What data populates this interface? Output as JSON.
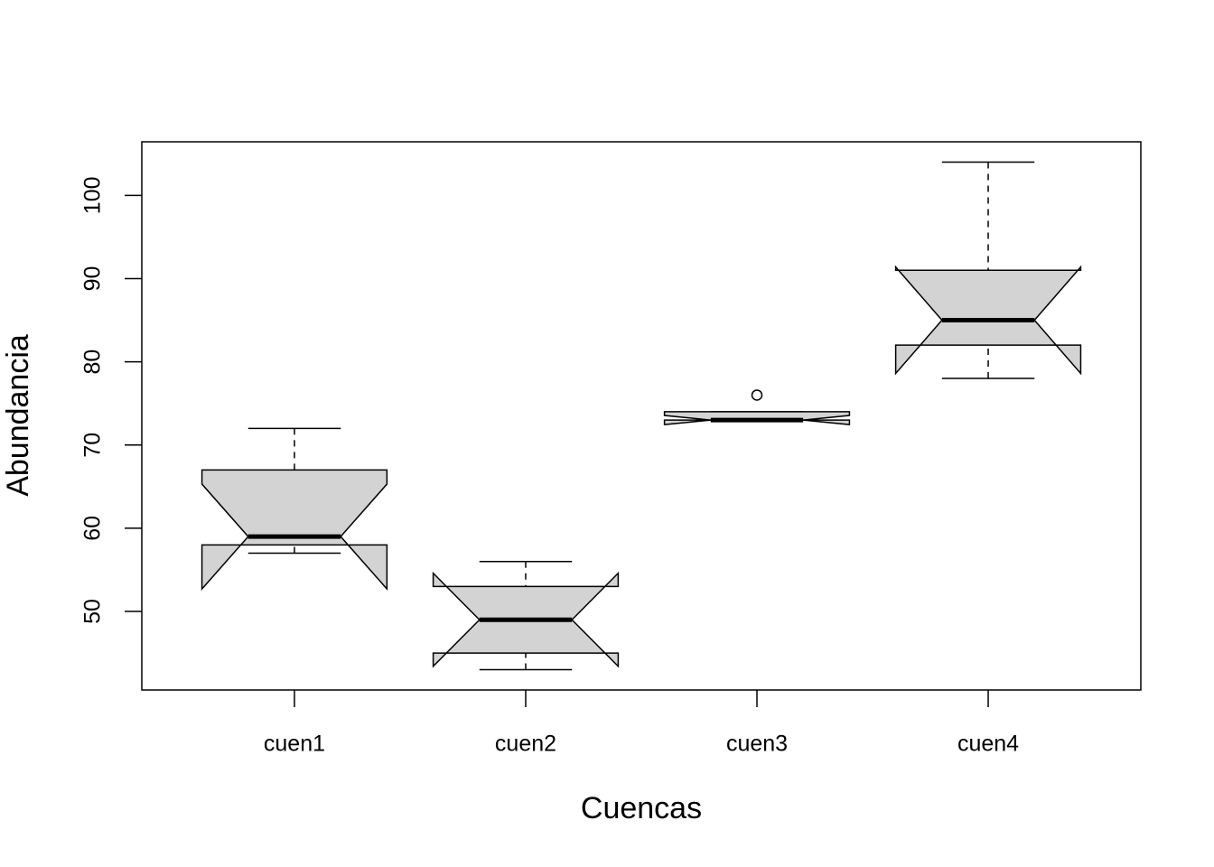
{
  "chart_data": {
    "type": "box",
    "x_label": "Cuencas",
    "y_label": "Abundancia",
    "categories": [
      "cuen1",
      "cuen2",
      "cuen3",
      "cuen4"
    ],
    "color": "#d3d3d3",
    "whisker_low": [
      57,
      43,
      73,
      78
    ],
    "q1": [
      58,
      45,
      73,
      82
    ],
    "median": [
      59,
      49,
      73,
      85
    ],
    "q3": [
      67,
      53,
      74,
      91
    ],
    "whisker_high": [
      72,
      56,
      74,
      104
    ],
    "notch_low": [
      52.7,
      43.4,
      72.45,
      78.6
    ],
    "notch_high": [
      65.3,
      54.6,
      73.55,
      91.4
    ],
    "outliers": [
      [],
      [],
      [
        76
      ],
      []
    ],
    "ylim": [
      40.56,
      106.44
    ],
    "yticks": [
      50,
      60,
      70,
      80,
      90,
      100
    ]
  }
}
